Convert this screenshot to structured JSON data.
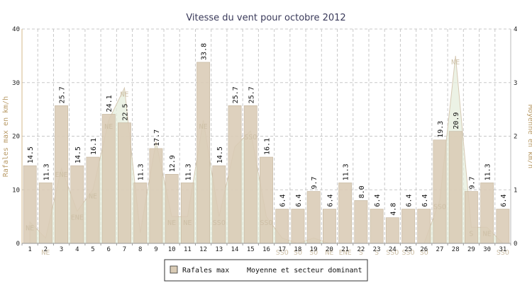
{
  "chart_data": {
    "type": "bar",
    "title": "Vitesse du vent pour octobre 2012",
    "ylabel_left": "Rafales max en km/h",
    "ylabel_right": "Moyenne en km/h",
    "ylim_left": [
      0,
      40
    ],
    "ylim_right": [
      0,
      4
    ],
    "yticks_left": [
      "0",
      "10",
      "20",
      "30",
      "40"
    ],
    "yticks_right": [
      "0",
      "1",
      "2",
      "3",
      "4"
    ],
    "grid": true,
    "legend_placement": "bottom-center",
    "colors": {
      "bars": "#d9cbb5",
      "bar_stroke": "#c4b59d",
      "area_fill": "#e6eddc",
      "area_stroke": "#d6c9b3",
      "axis_left": "#d4b98a",
      "axis_right": "#b8b8b8",
      "grid": "#c8c8c8",
      "sector_text": "#cdbfa6"
    },
    "categories": [
      "1",
      "2",
      "3",
      "4",
      "5",
      "6",
      "7",
      "8",
      "9",
      "10",
      "11",
      "12",
      "13",
      "14",
      "15",
      "16",
      "17",
      "18",
      "19",
      "20",
      "21",
      "22",
      "23",
      "24",
      "25",
      "26",
      "27",
      "28",
      "29",
      "30",
      "31"
    ],
    "series": [
      {
        "name": "Rafales max",
        "type": "bar",
        "values": [
          14.5,
          11.3,
          25.7,
          14.5,
          16.1,
          24.1,
          22.5,
          11.3,
          17.7,
          12.9,
          11.3,
          33.8,
          14.5,
          25.7,
          25.7,
          16.1,
          6.4,
          6.4,
          9.7,
          6.4,
          11.3,
          8.0,
          6.4,
          4.8,
          6.4,
          6.4,
          19.3,
          20.9,
          9.7,
          11.3,
          6.4
        ],
        "labels": [
          "14.5",
          "11.3",
          "25.7",
          "14.5",
          "16.1",
          "24.1",
          "22.5",
          "11.3",
          "17.7",
          "12.9",
          "11.3",
          "33.8",
          "14.5",
          "25.7",
          "25.7",
          "16.1",
          "6.4",
          "6.4",
          "9.7",
          "6.4",
          "11.3",
          "8.0",
          "6.4",
          "4.8",
          "6.4",
          "6.4",
          "19.3",
          "20.9",
          "9.7",
          "11.3",
          "6.4"
        ]
      },
      {
        "name": "Moyenne et secteur dominant",
        "type": "area",
        "values": [
          0.4,
          0.1,
          1.4,
          0.6,
          1.0,
          2.3,
          2.9,
          0.2,
          1.9,
          0.5,
          0.5,
          2.3,
          0.5,
          1.8,
          2.1,
          0.5,
          0.1,
          0.0,
          0.1,
          0.0,
          0.0,
          0.0,
          0.0,
          0.0,
          0.0,
          0.0,
          0.8,
          3.5,
          0.3,
          0.3,
          0.0
        ],
        "sectors": [
          "NE",
          "NE",
          "ENE",
          "ENE",
          "NE",
          "NE",
          "NE",
          "",
          "",
          "NE",
          "NE",
          "NE",
          "SSO",
          "",
          "SSO",
          "SSO",
          "SSO",
          "SO",
          "SO",
          "NE",
          "ENE",
          "S",
          "S",
          "SSO",
          "SSO",
          "SO",
          "SSO",
          "NE",
          "S",
          "NE",
          "SSO"
        ]
      }
    ]
  }
}
